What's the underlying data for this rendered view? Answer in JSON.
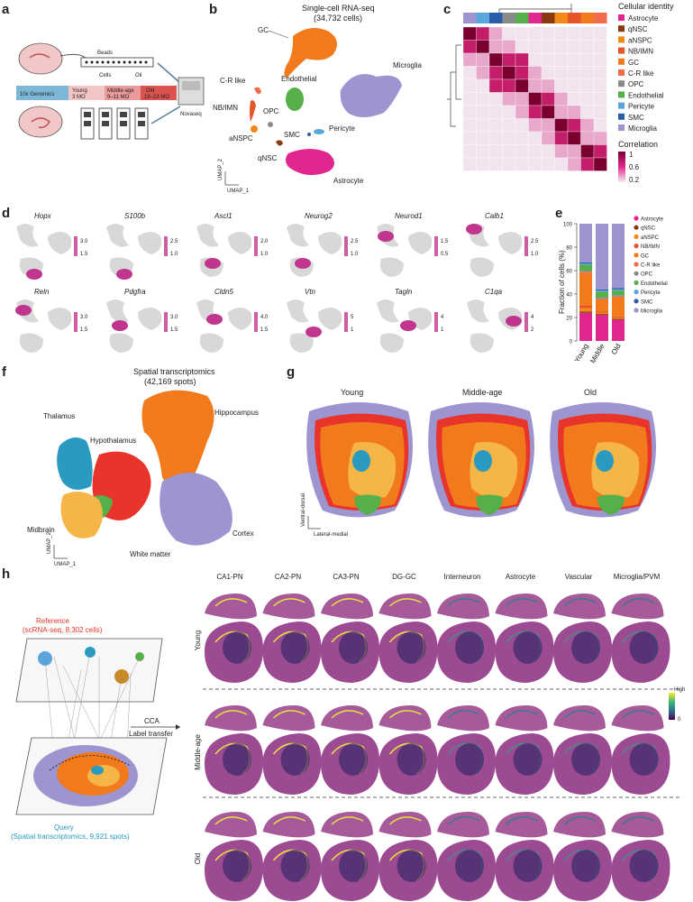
{
  "panels": {
    "a": "a",
    "b": "b",
    "c": "c",
    "d": "d",
    "e": "e",
    "f": "f",
    "g": "g",
    "h": "h"
  },
  "panel_a": {
    "platform": "10x Genomics",
    "groups": [
      "Young\n3 MO",
      "Middle-age\n9–11 MO",
      "Old\n19–23 MO"
    ],
    "labels": [
      "Beads",
      "Cells",
      "Oil"
    ],
    "instrument": "Novaseq"
  },
  "panel_b": {
    "title": "Single-cell RNA-seq",
    "subtitle": "(34,732 cells)",
    "clusters": [
      "GC",
      "C-R like",
      "NB/IMN",
      "OPC",
      "Endothelial",
      "Microglia",
      "aNSPC",
      "Pericyte",
      "SMC",
      "qNSC",
      "Astrocyte"
    ],
    "axis_y": "UMAP_2",
    "axis_x": "UMAP_1"
  },
  "panel_c": {
    "legend_title": "Cellular identity",
    "identities": [
      {
        "name": "Astrocyte",
        "color": "#e2268f"
      },
      {
        "name": "qNSC",
        "color": "#8b3a10"
      },
      {
        "name": "aNSPC",
        "color": "#f28a1a"
      },
      {
        "name": "NB/IMN",
        "color": "#e8542a"
      },
      {
        "name": "GC",
        "color": "#f07a1c"
      },
      {
        "name": "C-R like",
        "color": "#f26b4a"
      },
      {
        "name": "OPC",
        "color": "#8a8a8a"
      },
      {
        "name": "Endothelial",
        "color": "#55b04a"
      },
      {
        "name": "Pericyte",
        "color": "#5aa6dc"
      },
      {
        "name": "SMC",
        "color": "#2a5da8"
      },
      {
        "name": "Microglia",
        "color": "#9c95cf"
      }
    ],
    "colorbar_title": "Correlation",
    "colorbar_ticks": [
      "1",
      "0.6",
      "0.2"
    ]
  },
  "panel_d": {
    "genes": [
      {
        "name": "Hopx",
        "hi": "3.0",
        "lo": "1.5"
      },
      {
        "name": "S100b",
        "hi": "2.5",
        "lo": "1.0"
      },
      {
        "name": "Ascl1",
        "hi": "2.0",
        "lo": "1.0"
      },
      {
        "name": "Neurog2",
        "hi": "2.5",
        "lo": "1.0"
      },
      {
        "name": "Neurod1",
        "hi": "1.5",
        "lo": "0.5"
      },
      {
        "name": "Calb1",
        "hi": "2.5",
        "lo": "1.0"
      },
      {
        "name": "Reln",
        "hi": "3.0",
        "lo": "1.5"
      },
      {
        "name": "Pdgfra",
        "hi": "3.0",
        "lo": "1.5"
      },
      {
        "name": "Cldn5",
        "hi": "4.0",
        "lo": "1.5"
      },
      {
        "name": "Vtn",
        "hi": "5",
        "lo": "1"
      },
      {
        "name": "Tagln",
        "hi": "4",
        "lo": "1"
      },
      {
        "name": "C1qa",
        "hi": "4",
        "lo": "2"
      }
    ]
  },
  "chart_data": {
    "type": "bar",
    "stacked": true,
    "categories": [
      "Young",
      "Middle",
      "Old"
    ],
    "ylabel": "Fraction of cells (%)",
    "ylim": [
      0,
      100
    ],
    "yticks": [
      "0",
      "20",
      "40",
      "60",
      "80",
      "100"
    ],
    "series": [
      {
        "name": "Astrocyte",
        "color": "#e2268f",
        "values": [
          24,
          22,
          18
        ]
      },
      {
        "name": "qNSC",
        "color": "#8b3a10",
        "values": [
          1,
          1,
          1
        ]
      },
      {
        "name": "aNSPC",
        "color": "#f28a1a",
        "values": [
          3,
          1,
          1
        ]
      },
      {
        "name": "NB/IMN",
        "color": "#e8542a",
        "values": [
          2,
          1,
          1
        ]
      },
      {
        "name": "GC",
        "color": "#f07a1c",
        "values": [
          28,
          10,
          16
        ]
      },
      {
        "name": "C-R like",
        "color": "#f26b4a",
        "values": [
          1,
          1,
          1
        ]
      },
      {
        "name": "OPC",
        "color": "#8a8a8a",
        "values": [
          1,
          1,
          1
        ]
      },
      {
        "name": "Endothelial",
        "color": "#55b04a",
        "values": [
          5,
          5,
          4
        ]
      },
      {
        "name": "Pericyte",
        "color": "#5aa6dc",
        "values": [
          1,
          1,
          1
        ]
      },
      {
        "name": "SMC",
        "color": "#2a5da8",
        "values": [
          1,
          1,
          1
        ]
      },
      {
        "name": "Microglia",
        "color": "#9c95cf",
        "values": [
          33,
          56,
          55
        ]
      }
    ]
  },
  "panel_f": {
    "title": "Spatial transcriptomics",
    "subtitle": "(42,169 spots)",
    "regions": [
      "Hippocampus",
      "Thalamus",
      "Hypothalamus",
      "Midbrain",
      "White matter",
      "Cortex"
    ],
    "axis_y": "UMAP_2",
    "axis_x": "UMAP_1"
  },
  "panel_g": {
    "ages": [
      "Young",
      "Middle-age",
      "Old"
    ],
    "axis_y": "Ventral-dorsal",
    "axis_x": "Lateral-medial"
  },
  "panel_h": {
    "reference": "Reference",
    "reference_sub": "(scRNA-seq, 8,302 cells)",
    "query": "Query",
    "query_sub": "(Spatial transcriptomics, 9,921 spots)",
    "arrow_top": "CCA",
    "arrow_bottom": "Label transfer",
    "columns": [
      "CA1-PN",
      "CA2-PN",
      "CA3-PN",
      "DG-GC",
      "Interneuron",
      "Astrocyte",
      "Vascular",
      "Microglia/PVM"
    ],
    "rows": [
      "Young",
      "Middle-age",
      "Old"
    ],
    "colorbar_high": "High",
    "colorbar_low": "0"
  }
}
